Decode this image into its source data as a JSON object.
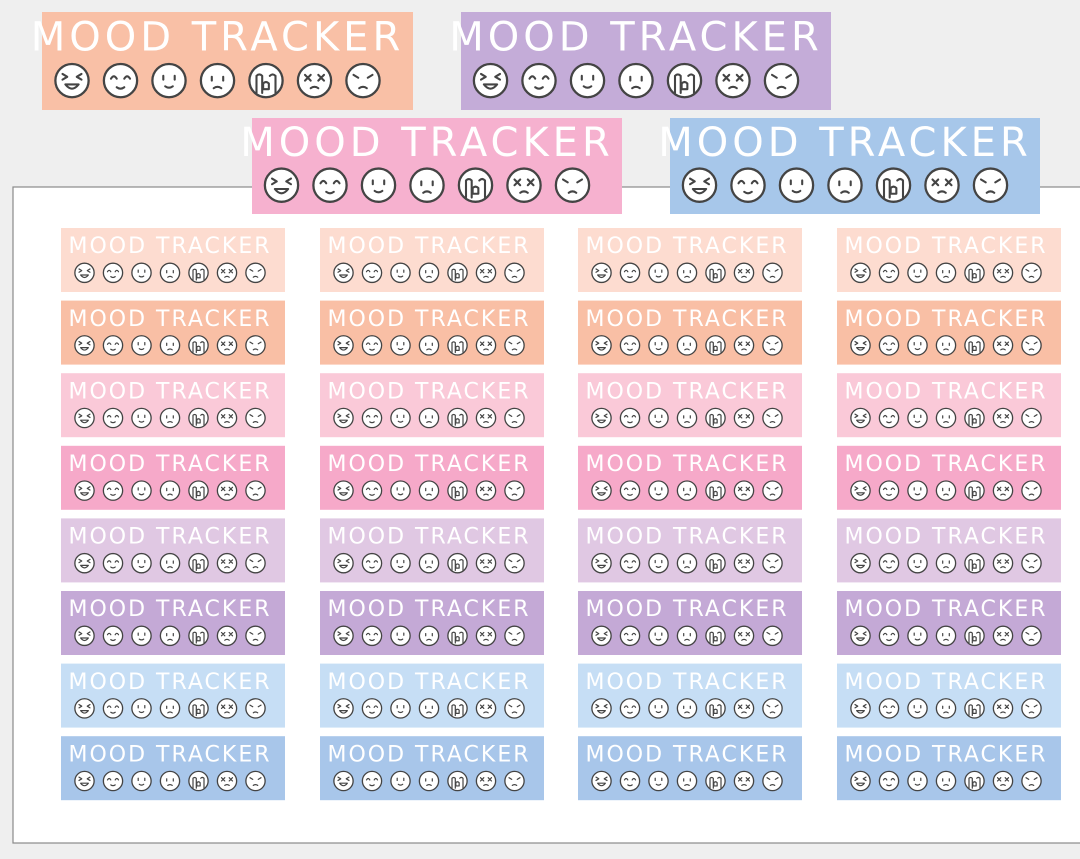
{
  "preview": [
    {
      "label": "MOOD TRACKER",
      "color": "#f9c0a6"
    },
    {
      "label": "MOOD TRACKER",
      "color": "#c4acd8"
    },
    {
      "label": "MOOD TRACKER",
      "color": "#f6b1cf"
    },
    {
      "label": "MOOD TRACKER",
      "color": "#a7c7ea"
    }
  ],
  "sheet": {
    "rows": [
      {
        "color": "#fddcd0",
        "labels": [
          "MOOD TRACKER",
          "MOOD TRACKER",
          "MOOD TRACKER",
          "MOOD TRACKER"
        ]
      },
      {
        "color": "#f9bfa5",
        "labels": [
          "MOOD TRACKER",
          "MOOD TRACKER",
          "MOOD TRACKER",
          "MOOD TRACKER"
        ]
      },
      {
        "color": "#fac9d8",
        "labels": [
          "MOOD TRACKER",
          "MOOD TRACKER",
          "MOOD TRACKER",
          "MOOD TRACKER"
        ]
      },
      {
        "color": "#f6a9c9",
        "labels": [
          "MOOD TRACKER",
          "MOOD TRACKER",
          "MOOD TRACKER",
          "MOOD TRACKER"
        ]
      },
      {
        "color": "#e0c8e3",
        "labels": [
          "MOOD TRACKER",
          "MOOD TRACKER",
          "MOOD TRACKER",
          "MOOD TRACKER"
        ]
      },
      {
        "color": "#c4a9d6",
        "labels": [
          "MOOD TRACKER",
          "MOOD TRACKER",
          "MOOD TRACKER",
          "MOOD TRACKER"
        ]
      },
      {
        "color": "#c6def5",
        "labels": [
          "MOOD TRACKER",
          "MOOD TRACKER",
          "MOOD TRACKER",
          "MOOD TRACKER"
        ]
      },
      {
        "color": "#a8c6ea",
        "labels": [
          "MOOD TRACKER",
          "MOOD TRACKER",
          "MOOD TRACKER",
          "MOOD TRACKER"
        ]
      }
    ]
  }
}
